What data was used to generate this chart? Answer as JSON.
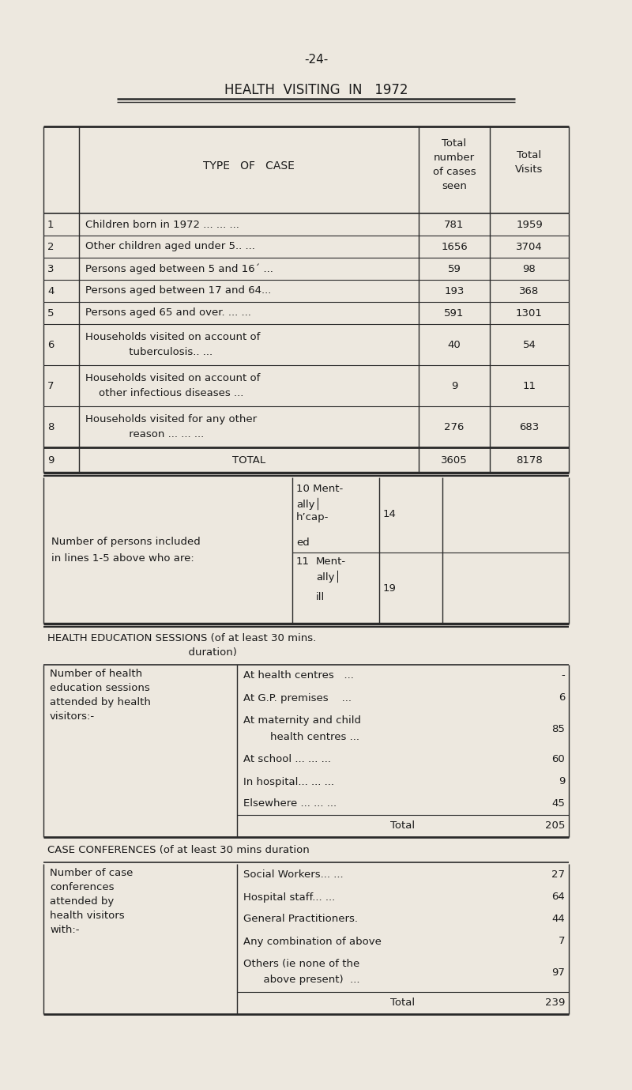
{
  "page_number": "-24-",
  "title": "HEALTH  VISITING  IN   1972",
  "bg_color": "#ede8df",
  "text_color": "#1a1a1a",
  "rows": [
    {
      "num": "1",
      "desc": "Children born in 1972 ... ... ...",
      "val1": "781",
      "val2": "1959"
    },
    {
      "num": "2",
      "desc": "Other children aged under 5.. ...",
      "val1": "1656",
      "val2": "3704"
    },
    {
      "num": "3",
      "desc": "Persons aged between 5 and 16´ ...",
      "val1": "59",
      "val2": "98"
    },
    {
      "num": "4",
      "desc": "Persons aged between 17 and 64...",
      "val1": "193",
      "val2": "368"
    },
    {
      "num": "5",
      "desc": "Persons aged 65 and over. ... ...",
      "val1": "591",
      "val2": "1301"
    },
    {
      "num": "6",
      "desc_line1": "Households visited on account of",
      "desc_line2": "             tuberculosis.. ...",
      "val1": "40",
      "val2": "54"
    },
    {
      "num": "7",
      "desc_line1": "Households visited on account of",
      "desc_line2": "    other infectious diseases ...",
      "val1": "9",
      "val2": "11"
    },
    {
      "num": "8",
      "desc_line1": "Households visited for any other",
      "desc_line2": "             reason ... ... ...",
      "val1": "276",
      "val2": "683"
    }
  ],
  "total_row": {
    "num": "9",
    "desc": "TOTAL",
    "val1": "3605",
    "val2": "8178"
  },
  "health_ed_rows": [
    {
      "label_right": "At health centres   ...",
      "val": "-"
    },
    {
      "label_right": "At G.P. premises    ...",
      "val": "6"
    },
    {
      "label_right": "At maternity and child\n        health centres ...",
      "val": "85"
    },
    {
      "label_right": "At school ... ... ...",
      "val": "60"
    },
    {
      "label_right": "In hospital... ... ...",
      "val": "9"
    },
    {
      "label_right": "Elsewhere ... ... ...",
      "val": "45"
    }
  ],
  "health_ed_total_val": "205",
  "case_conf_rows": [
    {
      "label_right": "Social Workers... ...",
      "val": "27"
    },
    {
      "label_right": "Hospital staff... ...",
      "val": "64"
    },
    {
      "label_right": "General Practitioners.",
      "val": "44"
    },
    {
      "label_right": "Any combination of above",
      "val": "7"
    },
    {
      "label_right": "Others (ie none of the\n      above present)  ...",
      "val": "97"
    }
  ],
  "case_conf_total_val": "239"
}
